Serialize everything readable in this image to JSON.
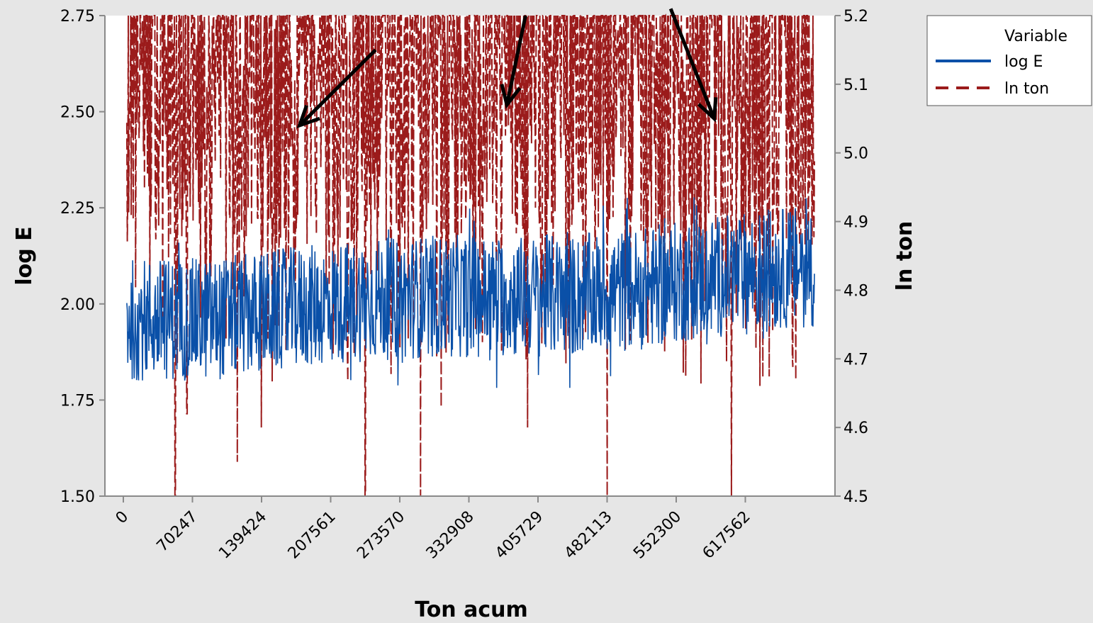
{
  "chart_data": {
    "type": "line",
    "xlabel": "Ton acum",
    "ylabel": "log E",
    "y2label": "ln ton",
    "x_tick_labels": [
      "0",
      "70247",
      "139424",
      "207561",
      "273570",
      "332908",
      "405729",
      "482113",
      "552300",
      "617562"
    ],
    "xlim": [
      0,
      10.5
    ],
    "ylim": [
      1.5,
      2.75
    ],
    "y_ticks": [
      "1.50",
      "1.75",
      "2.00",
      "2.25",
      "2.50",
      "2.75"
    ],
    "y2lim": [
      4.5,
      5.2
    ],
    "y2_ticks": [
      "4.5",
      "4.6",
      "4.7",
      "4.8",
      "4.9",
      "5.0",
      "5.1",
      "5.2"
    ],
    "legend": {
      "title": "Variable",
      "position": "top-right",
      "entries": [
        "log E",
        "ln ton"
      ]
    },
    "series": [
      {
        "name": "log E",
        "axis": "left",
        "style": "solid",
        "color": "#0a50a8",
        "baseline": [
          [
            0.05,
            1.96
          ],
          [
            1.3,
            1.96
          ],
          [
            2.5,
            1.99
          ],
          [
            3.5,
            2.01
          ],
          [
            4.5,
            2.02
          ],
          [
            5.5,
            2.02
          ],
          [
            6.5,
            2.02
          ],
          [
            7.5,
            2.04
          ],
          [
            8.5,
            2.07
          ],
          [
            9.5,
            2.09
          ],
          [
            10.0,
            2.1
          ]
        ],
        "band": [
          1.78,
          2.28
        ]
      },
      {
        "name": "ln ton",
        "axis": "right",
        "style": "dashed",
        "color": "#9b1b1b",
        "baseline": [
          [
            0.05,
            5.12
          ],
          [
            1.3,
            5.13
          ],
          [
            2.5,
            5.1
          ],
          [
            3.5,
            5.11
          ],
          [
            4.5,
            5.12
          ],
          [
            5.5,
            5.13
          ],
          [
            6.5,
            5.13
          ],
          [
            7.5,
            5.12
          ],
          [
            8.5,
            5.11
          ],
          [
            9.5,
            5.1
          ],
          [
            10.0,
            5.11
          ]
        ],
        "deep_dips": [
          [
            0.75,
            4.5
          ],
          [
            0.92,
            4.62
          ],
          [
            1.65,
            4.55
          ],
          [
            2.0,
            4.6
          ],
          [
            3.5,
            4.5
          ],
          [
            4.3,
            4.5
          ],
          [
            4.6,
            4.63
          ],
          [
            5.85,
            4.6
          ],
          [
            7.0,
            4.5
          ],
          [
            8.1,
            4.68
          ],
          [
            8.8,
            4.5
          ]
        ]
      }
    ],
    "annotations": [
      {
        "type": "arrow",
        "from": [
          3.65,
          5.15
        ],
        "to": [
          2.55,
          5.04
        ]
      },
      {
        "type": "arrow",
        "from": [
          5.82,
          5.2
        ],
        "to": [
          5.55,
          5.07
        ]
      },
      {
        "type": "arrow",
        "from": [
          7.92,
          5.21
        ],
        "to": [
          8.55,
          5.05
        ]
      }
    ],
    "grid": false
  }
}
